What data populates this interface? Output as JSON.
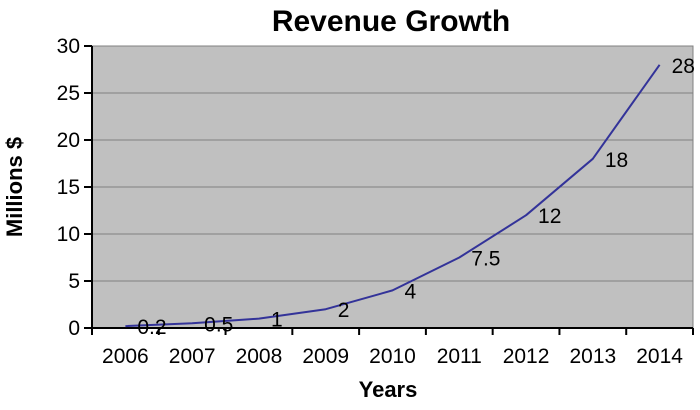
{
  "chart_data": {
    "type": "line",
    "title": "Revenue Growth",
    "xlabel": "Years",
    "ylabel": "Millions $",
    "categories": [
      "2006",
      "2007",
      "2008",
      "2009",
      "2010",
      "2011",
      "2012",
      "2013",
      "2014"
    ],
    "values": [
      0.2,
      0.5,
      1,
      2,
      4,
      7.5,
      12,
      18,
      28
    ],
    "data_labels": [
      "0.2",
      "0.5",
      "1",
      "2",
      "4",
      "7.5",
      "12",
      "18",
      "28"
    ],
    "ylim": [
      0,
      30
    ],
    "y_ticks": [
      0,
      5,
      10,
      15,
      20,
      25,
      30
    ],
    "grid": "horizontal",
    "legend": "none",
    "data_label_position": "right",
    "colors": {
      "line": "#333399",
      "plot_background": "#c0c0c0",
      "gridline": "#808080",
      "plot_border": "#808080",
      "axis": "#000000",
      "page_background": "#ffffff",
      "text": "#000000"
    }
  }
}
